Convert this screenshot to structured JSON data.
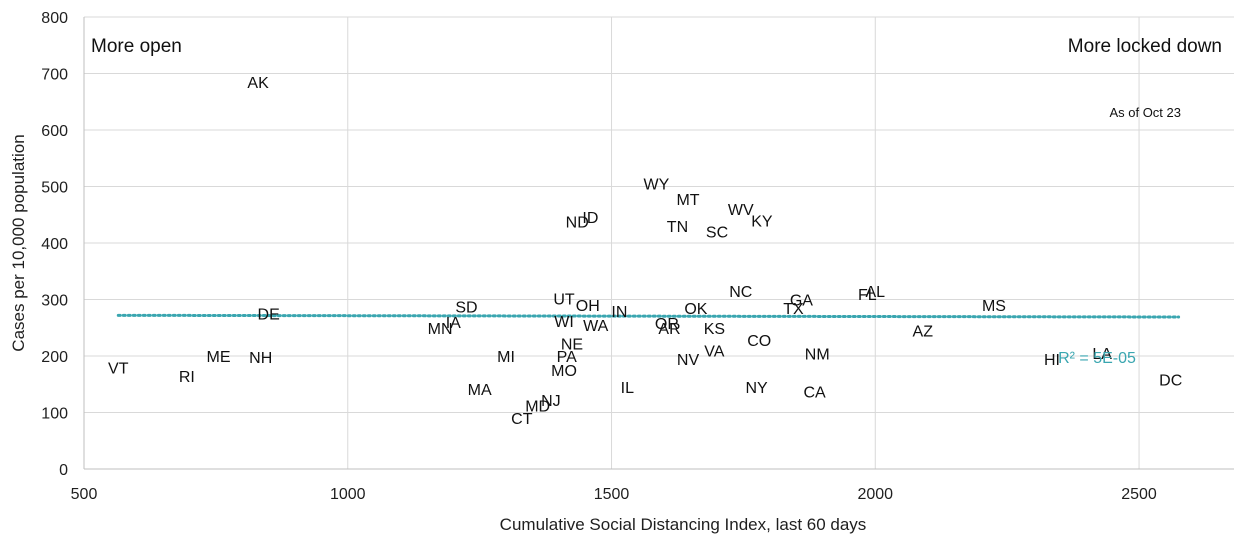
{
  "chart_data": {
    "type": "scatter",
    "xlabel": "Cumulative Social Distancing Index, last 60 days",
    "ylabel": "Cases per 10,000 population",
    "xlim": [
      500,
      2680
    ],
    "ylim": [
      0,
      800
    ],
    "x_ticks": [
      500,
      1000,
      1500,
      2000,
      2500
    ],
    "y_ticks": [
      0,
      100,
      200,
      300,
      400,
      500,
      600,
      700,
      800
    ],
    "grid": "vertical and horizontal major gridlines",
    "annotations": {
      "left": "More open",
      "right": "More locked down",
      "date": "As of Oct 23"
    },
    "trendline": {
      "style": "dotted",
      "color": "#3aa6b0",
      "x": [
        565,
        2575
      ],
      "y": [
        272,
        269
      ],
      "r2_label": "R² = 5E-05"
    },
    "points": [
      {
        "label": "AK",
        "x": 830,
        "y": 685
      },
      {
        "label": "VT",
        "x": 565,
        "y": 180
      },
      {
        "label": "RI",
        "x": 695,
        "y": 165
      },
      {
        "label": "ME",
        "x": 755,
        "y": 200
      },
      {
        "label": "NH",
        "x": 835,
        "y": 198
      },
      {
        "label": "DE",
        "x": 850,
        "y": 275
      },
      {
        "label": "MN",
        "x": 1175,
        "y": 250
      },
      {
        "label": "IA",
        "x": 1200,
        "y": 260
      },
      {
        "label": "SD",
        "x": 1225,
        "y": 288
      },
      {
        "label": "MI",
        "x": 1300,
        "y": 200
      },
      {
        "label": "MA",
        "x": 1250,
        "y": 142
      },
      {
        "label": "CT",
        "x": 1330,
        "y": 90
      },
      {
        "label": "MD",
        "x": 1360,
        "y": 112
      },
      {
        "label": "NJ",
        "x": 1385,
        "y": 122
      },
      {
        "label": "ND",
        "x": 1435,
        "y": 438
      },
      {
        "label": "ID",
        "x": 1460,
        "y": 446
      },
      {
        "label": "UT",
        "x": 1410,
        "y": 302
      },
      {
        "label": "WI",
        "x": 1410,
        "y": 262
      },
      {
        "label": "OH",
        "x": 1455,
        "y": 290
      },
      {
        "label": "WA",
        "x": 1470,
        "y": 255
      },
      {
        "label": "IN",
        "x": 1515,
        "y": 280
      },
      {
        "label": "NE",
        "x": 1425,
        "y": 222
      },
      {
        "label": "PA",
        "x": 1415,
        "y": 200
      },
      {
        "label": "MO",
        "x": 1410,
        "y": 175
      },
      {
        "label": "IL",
        "x": 1530,
        "y": 145
      },
      {
        "label": "WY",
        "x": 1585,
        "y": 505
      },
      {
        "label": "MT",
        "x": 1645,
        "y": 478
      },
      {
        "label": "TN",
        "x": 1625,
        "y": 430
      },
      {
        "label": "OR",
        "x": 1605,
        "y": 258
      },
      {
        "label": "AR",
        "x": 1610,
        "y": 250
      },
      {
        "label": "OK",
        "x": 1660,
        "y": 285
      },
      {
        "label": "NV",
        "x": 1645,
        "y": 195
      },
      {
        "label": "SC",
        "x": 1700,
        "y": 420
      },
      {
        "label": "KS",
        "x": 1695,
        "y": 250
      },
      {
        "label": "VA",
        "x": 1695,
        "y": 210
      },
      {
        "label": "WV",
        "x": 1745,
        "y": 460
      },
      {
        "label": "NC",
        "x": 1745,
        "y": 315
      },
      {
        "label": "KY",
        "x": 1785,
        "y": 440
      },
      {
        "label": "NY",
        "x": 1775,
        "y": 145
      },
      {
        "label": "CO",
        "x": 1780,
        "y": 228
      },
      {
        "label": "TX",
        "x": 1845,
        "y": 285
      },
      {
        "label": "GA",
        "x": 1860,
        "y": 300
      },
      {
        "label": "NM",
        "x": 1890,
        "y": 204
      },
      {
        "label": "CA",
        "x": 1885,
        "y": 137
      },
      {
        "label": "FL",
        "x": 1985,
        "y": 310
      },
      {
        "label": "AL",
        "x": 2000,
        "y": 315
      },
      {
        "label": "AZ",
        "x": 2090,
        "y": 245
      },
      {
        "label": "MS",
        "x": 2225,
        "y": 290
      },
      {
        "label": "HI",
        "x": 2335,
        "y": 195
      },
      {
        "label": "LA",
        "x": 2430,
        "y": 205
      },
      {
        "label": "DC",
        "x": 2560,
        "y": 158
      }
    ]
  }
}
